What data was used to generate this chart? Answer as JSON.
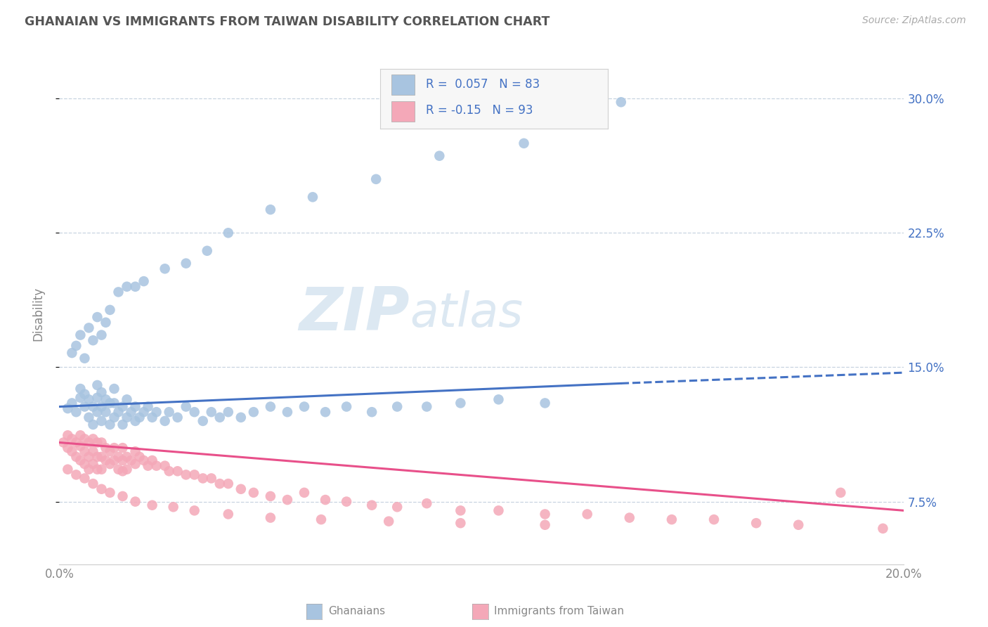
{
  "title": "GHANAIAN VS IMMIGRANTS FROM TAIWAN DISABILITY CORRELATION CHART",
  "source_text": "Source: ZipAtlas.com",
  "ylabel": "Disability",
  "xmin": 0.0,
  "xmax": 0.2,
  "ymin": 0.04,
  "ymax": 0.32,
  "yticks": [
    0.075,
    0.15,
    0.225,
    0.3
  ],
  "ytick_labels": [
    "7.5%",
    "15.0%",
    "22.5%",
    "30.0%"
  ],
  "xtick_vals": [
    0.0,
    0.05,
    0.1,
    0.15,
    0.2
  ],
  "xtick_labels": [
    "0.0%",
    "",
    "",
    "",
    "20.0%"
  ],
  "ghanaian_color": "#a8c4e0",
  "taiwan_color": "#f4a8b8",
  "ghanaian_R": 0.057,
  "ghanaian_N": 83,
  "taiwan_R": -0.15,
  "taiwan_N": 93,
  "trend_blue": "#4472c4",
  "trend_pink": "#e8508a",
  "legend_text_color": "#4472c4",
  "title_color": "#555555",
  "watermark_color": "#dce8f2",
  "background_color": "#ffffff",
  "grid_color": "#c8d4e0",
  "right_label_color": "#4472c4",
  "bottom_label_color": "#888888",
  "blue_line_start_y": 0.128,
  "blue_line_solid_end_x": 0.133,
  "blue_line_solid_end_y": 0.141,
  "blue_line_dash_end_y": 0.147,
  "pink_line_start_y": 0.108,
  "pink_line_solid_end_x": 0.2,
  "pink_line_end_y": 0.07,
  "ghanaian_scatter_x": [
    0.002,
    0.003,
    0.004,
    0.005,
    0.005,
    0.006,
    0.006,
    0.007,
    0.007,
    0.008,
    0.008,
    0.009,
    0.009,
    0.009,
    0.01,
    0.01,
    0.01,
    0.011,
    0.011,
    0.012,
    0.012,
    0.013,
    0.013,
    0.013,
    0.014,
    0.015,
    0.015,
    0.016,
    0.016,
    0.017,
    0.018,
    0.018,
    0.019,
    0.02,
    0.021,
    0.022,
    0.023,
    0.025,
    0.026,
    0.028,
    0.03,
    0.032,
    0.034,
    0.036,
    0.038,
    0.04,
    0.043,
    0.046,
    0.05,
    0.054,
    0.058,
    0.063,
    0.068,
    0.074,
    0.08,
    0.087,
    0.095,
    0.104,
    0.115,
    0.003,
    0.004,
    0.005,
    0.006,
    0.007,
    0.008,
    0.009,
    0.01,
    0.011,
    0.012,
    0.014,
    0.016,
    0.018,
    0.02,
    0.025,
    0.03,
    0.035,
    0.04,
    0.05,
    0.06,
    0.075,
    0.09,
    0.11,
    0.133
  ],
  "ghanaian_scatter_y": [
    0.127,
    0.13,
    0.125,
    0.133,
    0.138,
    0.128,
    0.135,
    0.122,
    0.132,
    0.118,
    0.128,
    0.125,
    0.133,
    0.14,
    0.12,
    0.128,
    0.136,
    0.125,
    0.132,
    0.118,
    0.13,
    0.122,
    0.13,
    0.138,
    0.125,
    0.118,
    0.128,
    0.122,
    0.132,
    0.125,
    0.12,
    0.128,
    0.122,
    0.125,
    0.128,
    0.122,
    0.125,
    0.12,
    0.125,
    0.122,
    0.128,
    0.125,
    0.12,
    0.125,
    0.122,
    0.125,
    0.122,
    0.125,
    0.128,
    0.125,
    0.128,
    0.125,
    0.128,
    0.125,
    0.128,
    0.128,
    0.13,
    0.132,
    0.13,
    0.158,
    0.162,
    0.168,
    0.155,
    0.172,
    0.165,
    0.178,
    0.168,
    0.175,
    0.182,
    0.192,
    0.195,
    0.195,
    0.198,
    0.205,
    0.208,
    0.215,
    0.225,
    0.238,
    0.245,
    0.255,
    0.268,
    0.275,
    0.298
  ],
  "taiwan_scatter_x": [
    0.001,
    0.002,
    0.002,
    0.003,
    0.003,
    0.004,
    0.004,
    0.005,
    0.005,
    0.005,
    0.006,
    0.006,
    0.006,
    0.007,
    0.007,
    0.007,
    0.008,
    0.008,
    0.008,
    0.009,
    0.009,
    0.009,
    0.01,
    0.01,
    0.01,
    0.011,
    0.011,
    0.012,
    0.012,
    0.013,
    0.013,
    0.014,
    0.014,
    0.015,
    0.015,
    0.015,
    0.016,
    0.016,
    0.017,
    0.018,
    0.018,
    0.019,
    0.02,
    0.021,
    0.022,
    0.023,
    0.025,
    0.026,
    0.028,
    0.03,
    0.032,
    0.034,
    0.036,
    0.038,
    0.04,
    0.043,
    0.046,
    0.05,
    0.054,
    0.058,
    0.063,
    0.068,
    0.074,
    0.08,
    0.087,
    0.095,
    0.104,
    0.115,
    0.125,
    0.135,
    0.145,
    0.155,
    0.165,
    0.175,
    0.185,
    0.195,
    0.002,
    0.004,
    0.006,
    0.008,
    0.01,
    0.012,
    0.015,
    0.018,
    0.022,
    0.027,
    0.032,
    0.04,
    0.05,
    0.062,
    0.078,
    0.095,
    0.115
  ],
  "taiwan_scatter_y": [
    0.108,
    0.112,
    0.105,
    0.11,
    0.103,
    0.108,
    0.1,
    0.112,
    0.106,
    0.098,
    0.11,
    0.103,
    0.096,
    0.108,
    0.1,
    0.093,
    0.11,
    0.103,
    0.096,
    0.108,
    0.1,
    0.093,
    0.108,
    0.1,
    0.093,
    0.105,
    0.098,
    0.103,
    0.096,
    0.105,
    0.098,
    0.1,
    0.093,
    0.105,
    0.098,
    0.092,
    0.1,
    0.093,
    0.098,
    0.103,
    0.096,
    0.1,
    0.098,
    0.095,
    0.098,
    0.095,
    0.095,
    0.092,
    0.092,
    0.09,
    0.09,
    0.088,
    0.088,
    0.085,
    0.085,
    0.082,
    0.08,
    0.078,
    0.076,
    0.08,
    0.076,
    0.075,
    0.073,
    0.072,
    0.074,
    0.07,
    0.07,
    0.068,
    0.068,
    0.066,
    0.065,
    0.065,
    0.063,
    0.062,
    0.08,
    0.06,
    0.093,
    0.09,
    0.088,
    0.085,
    0.082,
    0.08,
    0.078,
    0.075,
    0.073,
    0.072,
    0.07,
    0.068,
    0.066,
    0.065,
    0.064,
    0.063,
    0.062
  ]
}
